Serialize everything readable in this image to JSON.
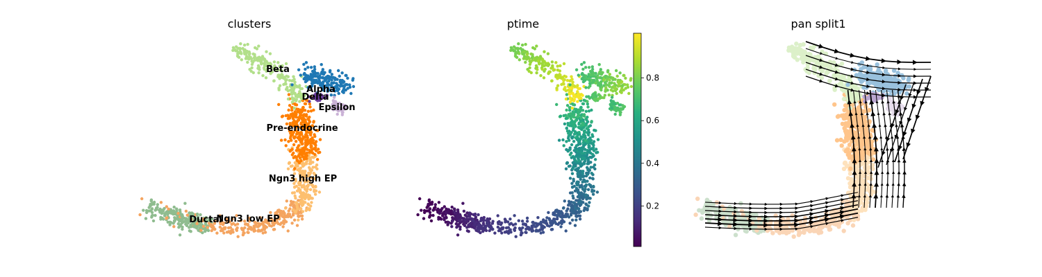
{
  "chart_data": [
    {
      "type": "scatter",
      "title": "clusters",
      "legend": "on data",
      "categories": [
        "Ductal",
        "Ngn3 low EP",
        "Ngn3 high EP",
        "Pre-endocrine",
        "Beta",
        "Alpha",
        "Delta",
        "Epsilon"
      ],
      "colors": {
        "Ductal": "#8fbc8f",
        "Ngn3 low EP": "#f4a460",
        "Ngn3 high EP": "#fdbf6f",
        "Pre-endocrine": "#ff7f00",
        "Beta": "#b2df8a",
        "Alpha": "#1f78b4",
        "Delta": "#6a3d9a",
        "Epsilon": "#cab2d6"
      }
    },
    {
      "type": "scatter",
      "title": "ptime",
      "colormap": "viridis",
      "colorbar_ticks": [
        "0.2",
        "0.4",
        "0.6",
        "0.8"
      ],
      "colorbar_range": [
        0.0,
        1.0
      ]
    },
    {
      "type": "scatter",
      "title": "pan split1",
      "overlay": "velocity streamlines"
    }
  ]
}
